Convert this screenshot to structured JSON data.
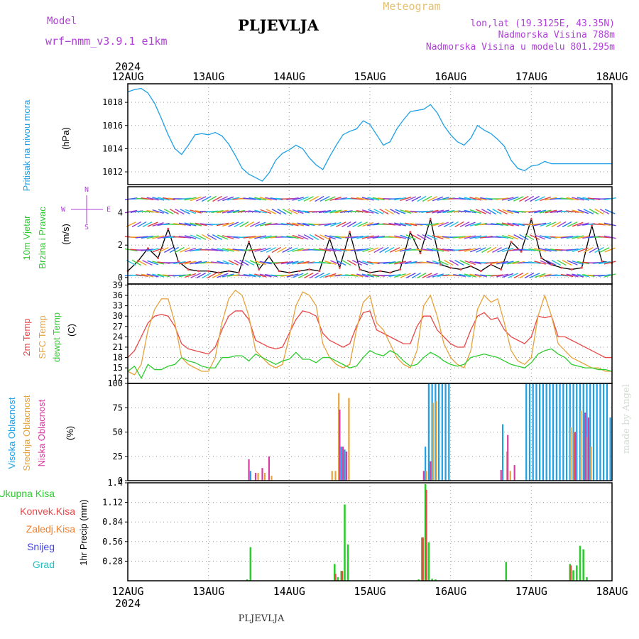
{
  "header": {
    "model_label": "Model",
    "model_name": "wrf−nmm_v3.9.1  e1km",
    "station": "PLJEVLJA",
    "product": "Meteogram",
    "coords": "lon,lat (19.3125E, 43.35N)",
    "elevation": "Nadmorska Visina 788m",
    "model_elevation": "Nadmorska Visina u modelu 801.295m",
    "credit": "made by Angel",
    "footer_station": "PLJEVLJA",
    "year_top": "2024",
    "year_bottom": "2024"
  },
  "time_axis": {
    "ticks": [
      "12AUG",
      "13AUG",
      "14AUG",
      "15AUG",
      "16AUG",
      "17AUG",
      "18AUG"
    ],
    "range_hours": [
      0,
      144
    ]
  },
  "panel_labels": {
    "pressure": [
      "Pritisak na nivou mora",
      "(hPa)"
    ],
    "wind": [
      "10m Vjetar",
      "Brzina i Pravac",
      "(m/s)"
    ],
    "compass": [
      "N",
      "E",
      "S",
      "W"
    ],
    "temp": [
      "2m Temp",
      "SFC Temp",
      "dewpt Temp",
      "(C)"
    ],
    "cloud": [
      "Visoka Oblacnost",
      "Srednja Oblacnost",
      "Niska Oblacnost",
      "(%)"
    ],
    "precip_legend": [
      "Ukupna Kisa",
      "Konvek.Kisa",
      "Zaledj.Kisa",
      "Snijeg",
      "Grad"
    ],
    "precip_axis": "1hr Precip (mm)"
  },
  "colors": {
    "pressure": "#1ea0e6",
    "temp2m": "#e84848",
    "sfc": "#e6a23c",
    "dewpt": "#2ecc2e",
    "high": "#1ea0e6",
    "mid": "#e6a23c",
    "low": "#d63ca0",
    "total": "#2ecc2e",
    "conv": "#e84848",
    "frozen": "#f08030",
    "snow": "#4040e0",
    "grad": "#20c0c0",
    "model": "#b040d8",
    "meteogram": "#e6c070"
  },
  "chart_data": [
    {
      "type": "line",
      "name_key": "pressure",
      "ylabel": "(hPa)",
      "yticks": [
        1012,
        1014,
        1016,
        1018
      ],
      "ylim": [
        1010.9,
        1019.6
      ],
      "x": [
        0,
        2,
        4,
        6,
        8,
        10,
        12,
        14,
        16,
        18,
        20,
        22,
        24,
        26,
        28,
        30,
        32,
        34,
        36,
        38,
        40,
        42,
        44,
        46,
        48,
        50,
        52,
        54,
        56,
        58,
        60,
        62,
        64,
        66,
        68,
        70,
        72,
        74,
        76,
        78,
        80,
        82,
        84,
        86,
        88,
        90,
        92,
        94,
        96,
        98,
        100,
        102,
        104,
        106,
        108,
        110,
        112,
        114,
        116,
        118,
        120,
        122,
        124,
        126,
        128,
        130,
        132,
        134,
        136,
        138,
        140,
        142,
        144
      ],
      "values": [
        1018.9,
        1019.1,
        1019.2,
        1018.8,
        1017.9,
        1016.6,
        1015.2,
        1014.0,
        1013.5,
        1014.3,
        1015.2,
        1015.3,
        1015.2,
        1015.4,
        1015.1,
        1014.4,
        1013.4,
        1012.3,
        1011.8,
        1011.5,
        1011.2,
        1011.9,
        1013.0,
        1013.6,
        1013.9,
        1014.3,
        1014.0,
        1013.2,
        1012.6,
        1012.2,
        1013.3,
        1014.3,
        1015.2,
        1015.5,
        1015.7,
        1016.4,
        1016.1,
        1015.2,
        1014.3,
        1014.6,
        1015.7,
        1016.5,
        1017.2,
        1017.3,
        1017.4,
        1017.8,
        1017.1,
        1016.0,
        1015.2,
        1014.6,
        1014.3,
        1014.9,
        1016.0,
        1015.6,
        1015.3,
        1014.8,
        1014.2,
        1013.0,
        1012.3,
        1012.1,
        1012.5,
        1012.6,
        1012.9,
        1012.7,
        1012.7,
        1012.7,
        1012.7,
        1012.7,
        1012.7,
        1012.7,
        1012.7,
        1012.7,
        1012.7
      ]
    },
    {
      "type": "line",
      "name_key": "wind",
      "ylabel": "(m/s)",
      "yticks": [
        0,
        2,
        4
      ],
      "ylim": [
        -0.4,
        5.6
      ],
      "x": [
        0,
        3,
        6,
        9,
        12,
        15,
        18,
        21,
        24,
        27,
        30,
        33,
        36,
        39,
        42,
        45,
        48,
        51,
        54,
        57,
        60,
        63,
        66,
        69,
        72,
        75,
        78,
        81,
        84,
        87,
        90,
        93,
        96,
        99,
        102,
        105,
        108,
        111,
        114,
        117,
        120,
        123,
        126,
        129,
        132,
        135,
        138,
        141,
        144
      ],
      "values": [
        0.4,
        1.0,
        1.8,
        1.2,
        3.0,
        1.0,
        0.5,
        0.4,
        0.4,
        0.3,
        0.4,
        0.3,
        2.2,
        0.5,
        1.3,
        0.4,
        0.3,
        0.4,
        0.5,
        0.4,
        2.4,
        0.6,
        2.8,
        0.5,
        0.3,
        0.4,
        0.3,
        0.5,
        2.8,
        1.5,
        3.6,
        0.8,
        0.6,
        0.5,
        0.7,
        0.4,
        0.8,
        0.5,
        2.2,
        1.6,
        3.6,
        1.2,
        0.8,
        0.6,
        0.5,
        0.6,
        3.2,
        1.0,
        0.9
      ]
    },
    {
      "type": "line",
      "name_key": "temp",
      "ylabel": "(C)",
      "yticks": [
        12,
        15,
        18,
        21,
        24,
        27,
        30,
        33,
        36,
        39
      ],
      "ylim": [
        10.5,
        39.3
      ],
      "x": [
        0,
        2,
        4,
        6,
        8,
        10,
        12,
        14,
        16,
        18,
        20,
        22,
        24,
        26,
        28,
        30,
        32,
        34,
        36,
        38,
        40,
        42,
        44,
        46,
        48,
        50,
        52,
        54,
        56,
        58,
        60,
        62,
        64,
        66,
        68,
        70,
        72,
        74,
        76,
        78,
        80,
        82,
        84,
        86,
        88,
        90,
        92,
        94,
        96,
        98,
        100,
        102,
        104,
        106,
        108,
        110,
        112,
        114,
        116,
        118,
        120,
        122,
        124,
        126,
        128,
        130,
        132,
        134,
        136,
        138,
        140,
        142,
        144
      ],
      "series": [
        {
          "key": "temp2m",
          "values": [
            18,
            20,
            24,
            28,
            30,
            30.5,
            30,
            27,
            22,
            20.5,
            20,
            19.5,
            19,
            21,
            26,
            30,
            31.5,
            31.5,
            29,
            23,
            22,
            21,
            20.5,
            21,
            25,
            29,
            31.5,
            31,
            30,
            25,
            23,
            22,
            21,
            22,
            27,
            31,
            31.5,
            26,
            25,
            24,
            23,
            22,
            22,
            27,
            30,
            30,
            26,
            24,
            22,
            21,
            21,
            26,
            30,
            31,
            29,
            29.5,
            26,
            24,
            23,
            22,
            24,
            30,
            29.5,
            30,
            24,
            24,
            23,
            22,
            21,
            20,
            19,
            18,
            18
          ]
        },
        {
          "key": "sfc",
          "values": [
            14,
            13,
            16,
            26,
            32,
            35,
            35,
            28,
            18,
            16,
            15,
            14,
            14,
            18,
            28,
            35,
            37.5,
            36,
            30,
            20,
            18,
            16,
            15,
            16,
            24,
            33,
            37,
            36,
            33,
            22,
            18,
            16,
            15,
            16,
            26,
            34,
            36,
            28,
            26,
            22,
            18,
            16,
            15,
            20,
            33,
            36,
            30,
            22,
            18,
            16,
            15,
            20,
            32,
            36,
            34,
            35,
            28,
            20,
            17,
            16,
            18,
            30,
            36,
            30,
            22,
            20,
            18,
            17,
            16,
            15,
            15,
            14,
            14
          ]
        },
        {
          "key": "dewpt",
          "values": [
            14,
            15.5,
            12,
            16,
            14.5,
            14.5,
            15.5,
            16,
            18,
            17,
            16.5,
            15.5,
            15,
            15,
            18,
            18,
            18.5,
            18.5,
            17,
            19,
            18,
            17,
            16,
            17,
            17.5,
            19.5,
            17.5,
            17.5,
            16.5,
            18,
            18,
            17,
            16,
            15,
            15.5,
            18,
            20,
            19,
            18.5,
            20,
            19,
            17,
            15.5,
            16,
            18,
            19.5,
            18.5,
            17,
            16,
            15.5,
            16,
            18,
            18.5,
            19,
            18.5,
            18,
            17,
            16,
            15.5,
            15,
            16.5,
            19,
            20,
            20.5,
            19,
            18,
            16,
            15.5,
            15,
            15,
            14.5,
            14.5,
            14
          ]
        }
      ]
    },
    {
      "type": "bar",
      "name_key": "cloud",
      "ylabel": "(%)",
      "yticks": [
        0,
        25,
        50,
        75,
        100
      ],
      "ylim": [
        0,
        100
      ],
      "series": [
        {
          "key": "high",
          "x": [
            36.5,
            63.5,
            64.5,
            88.5,
            89.5,
            90.5,
            91.5,
            92.5,
            93.5,
            94.5,
            95.5,
            111.5,
            118.5,
            119.5,
            120.5,
            121.5,
            122.5,
            123.5,
            124.5,
            125.5,
            126.5,
            127.5,
            128.5,
            129.5,
            130.5,
            131.5,
            132.5,
            133.5,
            134.5,
            135.5,
            136.5,
            137.5,
            138.5,
            139.5,
            140.5,
            141.5,
            142.5,
            143.5
          ],
          "values": [
            10,
            35,
            32,
            35,
            100,
            100,
            100,
            100,
            100,
            100,
            100,
            58,
            100,
            100,
            100,
            100,
            100,
            100,
            100,
            100,
            100,
            100,
            100,
            100,
            100,
            100,
            100,
            100,
            100,
            100,
            100,
            100,
            100,
            100,
            100,
            100,
            100,
            65
          ]
        },
        {
          "key": "mid",
          "x": [
            38.5,
            40.5,
            42.5,
            60.5,
            61.5,
            62.5,
            65.5,
            88.5,
            90.5,
            91.5,
            112.5,
            113.5,
            131.5,
            132.5,
            134.5,
            136.5,
            137.5
          ],
          "values": [
            8,
            8,
            5,
            10,
            10,
            90,
            85,
            10,
            80,
            82,
            30,
            10,
            55,
            50,
            72,
            45,
            35
          ]
        },
        {
          "key": "low",
          "x": [
            35.5,
            37.5,
            39.5,
            41.5,
            62.5,
            63.5,
            64.5,
            87.5,
            89.5,
            110.5,
            112.5,
            114.5,
            132.5,
            135.5,
            136.5
          ],
          "values": [
            22,
            8,
            13,
            25,
            73,
            35,
            30,
            10,
            20,
            11,
            47,
            16,
            50,
            70,
            65
          ]
        }
      ]
    },
    {
      "type": "bar",
      "name_key": "precip",
      "ylabel": "1hr Precip (mm)",
      "yticks": [
        0.28,
        0.56,
        0.84,
        1.12,
        1.4
      ],
      "ylim": [
        0,
        1.4
      ],
      "series": [
        {
          "key": "total",
          "x": [
            35.5,
            36.5,
            61.5,
            62.5,
            63.5,
            64.5,
            65.5,
            86.5,
            87.5,
            88.5,
            89.5,
            90.5,
            91.5,
            112.5,
            131.5,
            132.5,
            133.5,
            134.5,
            135.5,
            136.5
          ],
          "values": [
            0.02,
            0.48,
            0.24,
            0.05,
            0.14,
            1.09,
            0.52,
            0.02,
            0.62,
            1.38,
            0.55,
            0.03,
            0.02,
            0.27,
            0.24,
            0.15,
            0.22,
            0.5,
            0.45,
            0.05
          ]
        },
        {
          "key": "conv",
          "x": [
            61.5,
            63.5,
            87.5,
            88.5,
            131.5
          ],
          "values": [
            0.1,
            0.14,
            0.62,
            1.3,
            0.22
          ]
        }
      ]
    }
  ]
}
